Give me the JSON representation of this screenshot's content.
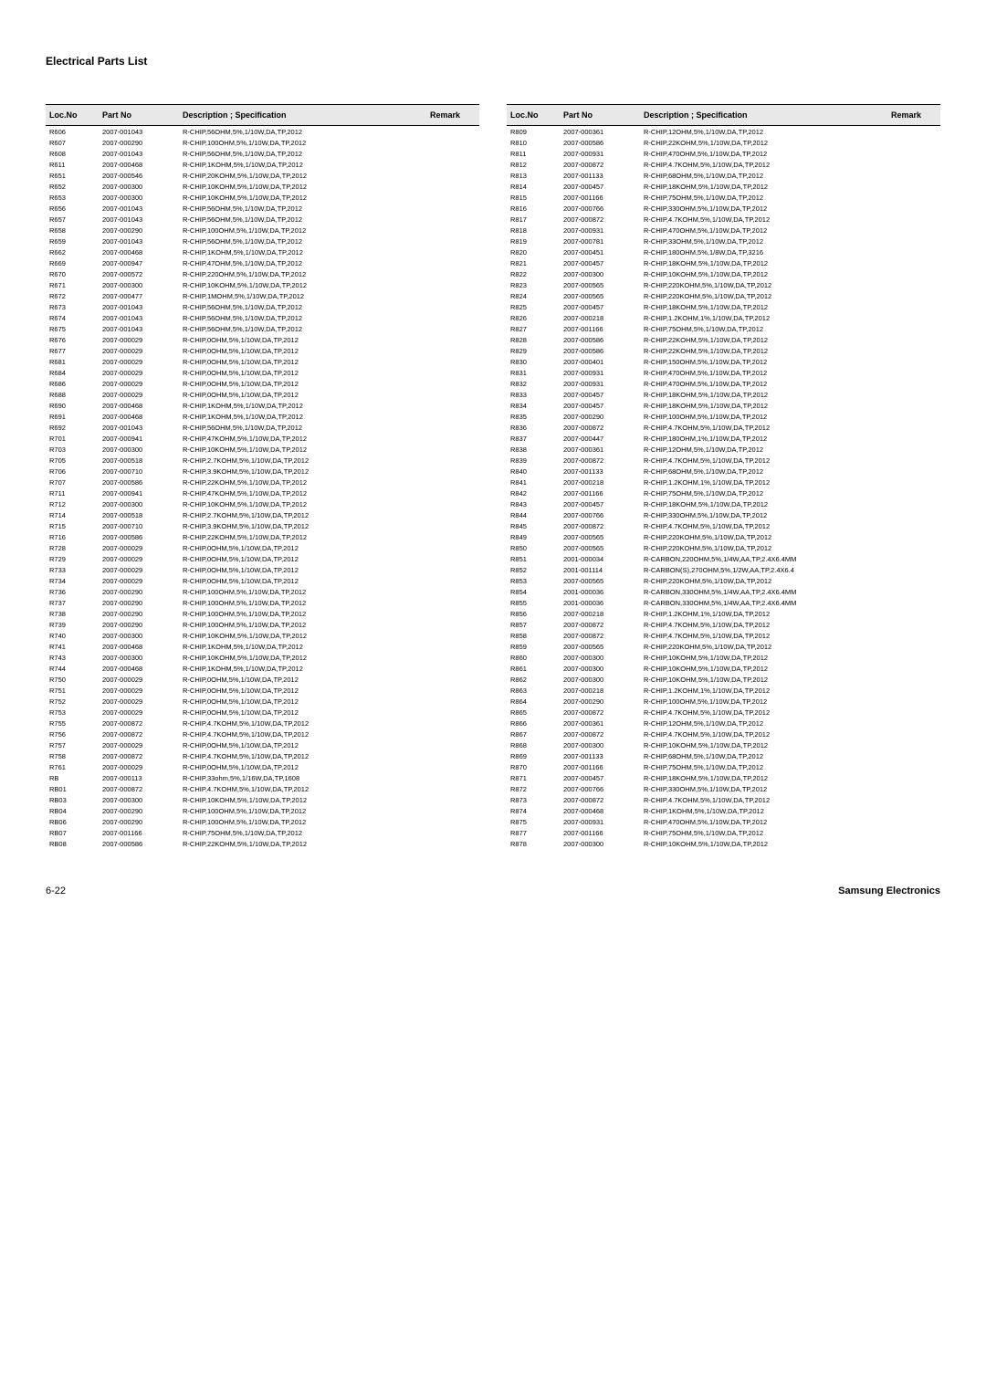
{
  "section_title": "Electrical Parts List",
  "headers": {
    "loc": "Loc.No",
    "part": "Part No",
    "desc": "Description ; Specification",
    "remark": "Remark"
  },
  "footer": {
    "page": "6-22",
    "company": "Samsung Electronics"
  },
  "left_rows": [
    {
      "loc": "R606",
      "part": "2007-001043",
      "desc": "R-CHIP,56OHM,5%,1/10W,DA,TP,2012"
    },
    {
      "loc": "R607",
      "part": "2007-000290",
      "desc": "R-CHIP,100OHM,5%,1/10W,DA,TP,2012"
    },
    {
      "loc": "R608",
      "part": "2007-001043",
      "desc": "R-CHIP,56OHM,5%,1/10W,DA,TP,2012"
    },
    {
      "loc": "R611",
      "part": "2007-000468",
      "desc": "R-CHIP,1KOHM,5%,1/10W,DA,TP,2012"
    },
    {
      "loc": "R651",
      "part": "2007-000546",
      "desc": "R-CHIP,20KOHM,5%,1/10W,DA,TP,2012"
    },
    {
      "loc": "R652",
      "part": "2007-000300",
      "desc": "R-CHIP,10KOHM,5%,1/10W,DA,TP,2012"
    },
    {
      "loc": "R653",
      "part": "2007-000300",
      "desc": "R-CHIP,10KOHM,5%,1/10W,DA,TP,2012"
    },
    {
      "loc": "R656",
      "part": "2007-001043",
      "desc": "R-CHIP,56OHM,5%,1/10W,DA,TP,2012"
    },
    {
      "loc": "R657",
      "part": "2007-001043",
      "desc": "R-CHIP,56OHM,5%,1/10W,DA,TP,2012"
    },
    {
      "loc": "R658",
      "part": "2007-000290",
      "desc": "R-CHIP,100OHM,5%,1/10W,DA,TP,2012"
    },
    {
      "loc": "R659",
      "part": "2007-001043",
      "desc": "R-CHIP,56OHM,5%,1/10W,DA,TP,2012"
    },
    {
      "loc": "R662",
      "part": "2007-000468",
      "desc": "R-CHIP,1KOHM,5%,1/10W,DA,TP,2012"
    },
    {
      "loc": "R669",
      "part": "2007-000947",
      "desc": "R-CHIP,47OHM,5%,1/10W,DA,TP,2012"
    },
    {
      "loc": "R670",
      "part": "2007-000572",
      "desc": "R-CHIP,220OHM,5%,1/10W,DA,TP,2012"
    },
    {
      "loc": "R671",
      "part": "2007-000300",
      "desc": "R-CHIP,10KOHM,5%,1/10W,DA,TP,2012"
    },
    {
      "loc": "R672",
      "part": "2007-000477",
      "desc": "R-CHIP,1MOHM,5%,1/10W,DA,TP,2012"
    },
    {
      "loc": "R673",
      "part": "2007-001043",
      "desc": "R-CHIP,56OHM,5%,1/10W,DA,TP,2012"
    },
    {
      "loc": "R674",
      "part": "2007-001043",
      "desc": "R-CHIP,56OHM,5%,1/10W,DA,TP,2012"
    },
    {
      "loc": "R675",
      "part": "2007-001043",
      "desc": "R-CHIP,56OHM,5%,1/10W,DA,TP,2012"
    },
    {
      "loc": "R676",
      "part": "2007-000029",
      "desc": "R-CHIP,0OHM,5%,1/10W,DA,TP,2012"
    },
    {
      "loc": "R677",
      "part": "2007-000029",
      "desc": "R-CHIP,0OHM,5%,1/10W,DA,TP,2012"
    },
    {
      "loc": "R681",
      "part": "2007-000029",
      "desc": "R-CHIP,0OHM,5%,1/10W,DA,TP,2012"
    },
    {
      "loc": "R684",
      "part": "2007-000029",
      "desc": "R-CHIP,0OHM,5%,1/10W,DA,TP,2012"
    },
    {
      "loc": "R686",
      "part": "2007-000029",
      "desc": "R-CHIP,0OHM,5%,1/10W,DA,TP,2012"
    },
    {
      "loc": "R688",
      "part": "2007-000029",
      "desc": "R-CHIP,0OHM,5%,1/10W,DA,TP,2012"
    },
    {
      "loc": "R690",
      "part": "2007-000468",
      "desc": "R-CHIP,1KOHM,5%,1/10W,DA,TP,2012"
    },
    {
      "loc": "R691",
      "part": "2007-000468",
      "desc": "R-CHIP,1KOHM,5%,1/10W,DA,TP,2012"
    },
    {
      "loc": "R692",
      "part": "2007-001043",
      "desc": "R-CHIP,56OHM,5%,1/10W,DA,TP,2012"
    },
    {
      "loc": "R701",
      "part": "2007-000941",
      "desc": "R-CHIP,47KOHM,5%,1/10W,DA,TP,2012"
    },
    {
      "loc": "R703",
      "part": "2007-000300",
      "desc": "R-CHIP,10KOHM,5%,1/10W,DA,TP,2012"
    },
    {
      "loc": "R705",
      "part": "2007-000518",
      "desc": "R-CHIP,2.7KOHM,5%,1/10W,DA,TP,2012"
    },
    {
      "loc": "R706",
      "part": "2007-000710",
      "desc": "R-CHIP,3.9KOHM,5%,1/10W,DA,TP,2012"
    },
    {
      "loc": "R707",
      "part": "2007-000586",
      "desc": "R-CHIP,22KOHM,5%,1/10W,DA,TP,2012"
    },
    {
      "loc": "R711",
      "part": "2007-000941",
      "desc": "R-CHIP,47KOHM,5%,1/10W,DA,TP,2012"
    },
    {
      "loc": "R712",
      "part": "2007-000300",
      "desc": "R-CHIP,10KOHM,5%,1/10W,DA,TP,2012"
    },
    {
      "loc": "R714",
      "part": "2007-000518",
      "desc": "R-CHIP,2.7KOHM,5%,1/10W,DA,TP,2012"
    },
    {
      "loc": "R715",
      "part": "2007-000710",
      "desc": "R-CHIP,3.9KOHM,5%,1/10W,DA,TP,2012"
    },
    {
      "loc": "R716",
      "part": "2007-000586",
      "desc": "R-CHIP,22KOHM,5%,1/10W,DA,TP,2012"
    },
    {
      "loc": "R728",
      "part": "2007-000029",
      "desc": "R-CHIP,0OHM,5%,1/10W,DA,TP,2012"
    },
    {
      "loc": "R729",
      "part": "2007-000029",
      "desc": "R-CHIP,0OHM,5%,1/10W,DA,TP,2012"
    },
    {
      "loc": "R733",
      "part": "2007-000029",
      "desc": "R-CHIP,0OHM,5%,1/10W,DA,TP,2012"
    },
    {
      "loc": "R734",
      "part": "2007-000029",
      "desc": "R-CHIP,0OHM,5%,1/10W,DA,TP,2012"
    },
    {
      "loc": "R736",
      "part": "2007-000290",
      "desc": "R-CHIP,100OHM,5%,1/10W,DA,TP,2012"
    },
    {
      "loc": "R737",
      "part": "2007-000290",
      "desc": "R-CHIP,100OHM,5%,1/10W,DA,TP,2012"
    },
    {
      "loc": "R738",
      "part": "2007-000290",
      "desc": "R-CHIP,100OHM,5%,1/10W,DA,TP,2012"
    },
    {
      "loc": "R739",
      "part": "2007-000290",
      "desc": "R-CHIP,100OHM,5%,1/10W,DA,TP,2012"
    },
    {
      "loc": "R740",
      "part": "2007-000300",
      "desc": "R-CHIP,10KOHM,5%,1/10W,DA,TP,2012"
    },
    {
      "loc": "R741",
      "part": "2007-000468",
      "desc": "R-CHIP,1KOHM,5%,1/10W,DA,TP,2012"
    },
    {
      "loc": "R743",
      "part": "2007-000300",
      "desc": "R-CHIP,10KOHM,5%,1/10W,DA,TP,2012"
    },
    {
      "loc": "R744",
      "part": "2007-000468",
      "desc": "R-CHIP,1KOHM,5%,1/10W,DA,TP,2012"
    },
    {
      "loc": "R750",
      "part": "2007-000029",
      "desc": "R-CHIP,0OHM,5%,1/10W,DA,TP,2012"
    },
    {
      "loc": "R751",
      "part": "2007-000029",
      "desc": "R-CHIP,0OHM,5%,1/10W,DA,TP,2012"
    },
    {
      "loc": "R752",
      "part": "2007-000029",
      "desc": "R-CHIP,0OHM,5%,1/10W,DA,TP,2012"
    },
    {
      "loc": "R753",
      "part": "2007-000029",
      "desc": "R-CHIP,0OHM,5%,1/10W,DA,TP,2012"
    },
    {
      "loc": "R755",
      "part": "2007-000872",
      "desc": "R-CHIP,4.7KOHM,5%,1/10W,DA,TP,2012"
    },
    {
      "loc": "R756",
      "part": "2007-000872",
      "desc": "R-CHIP,4.7KOHM,5%,1/10W,DA,TP,2012"
    },
    {
      "loc": "R757",
      "part": "2007-000029",
      "desc": "R-CHIP,0OHM,5%,1/10W,DA,TP,2012"
    },
    {
      "loc": "R758",
      "part": "2007-000872",
      "desc": "R-CHIP,4.7KOHM,5%,1/10W,DA,TP,2012"
    },
    {
      "loc": "R761",
      "part": "2007-000029",
      "desc": "R-CHIP,0OHM,5%,1/10W,DA,TP,2012"
    },
    {
      "loc": "RB",
      "part": "2007-000113",
      "desc": "R-CHIP,33ohm,5%,1/16W,DA,TP,1608"
    },
    {
      "loc": "RB01",
      "part": "2007-000872",
      "desc": "R-CHIP,4.7KOHM,5%,1/10W,DA,TP,2012"
    },
    {
      "loc": "RB03",
      "part": "2007-000300",
      "desc": "R-CHIP,10KOHM,5%,1/10W,DA,TP,2012"
    },
    {
      "loc": "RB04",
      "part": "2007-000290",
      "desc": "R-CHIP,100OHM,5%,1/10W,DA,TP,2012"
    },
    {
      "loc": "RB06",
      "part": "2007-000290",
      "desc": "R-CHIP,100OHM,5%,1/10W,DA,TP,2012"
    },
    {
      "loc": "RB07",
      "part": "2007-001166",
      "desc": "R-CHIP,75OHM,5%,1/10W,DA,TP,2012"
    },
    {
      "loc": "RB08",
      "part": "2007-000586",
      "desc": "R-CHIP,22KOHM,5%,1/10W,DA,TP,2012"
    }
  ],
  "right_rows": [
    {
      "loc": "R809",
      "part": "2007-000361",
      "desc": "R-CHIP,12OHM,5%,1/10W,DA,TP,2012"
    },
    {
      "loc": "R810",
      "part": "2007-000586",
      "desc": "R-CHIP,22KOHM,5%,1/10W,DA,TP,2012"
    },
    {
      "loc": "R811",
      "part": "2007-000931",
      "desc": "R-CHIP,470OHM,5%,1/10W,DA,TP,2012"
    },
    {
      "loc": "R812",
      "part": "2007-000872",
      "desc": "R-CHIP,4.7KOHM,5%,1/10W,DA,TP,2012"
    },
    {
      "loc": "R813",
      "part": "2007-001133",
      "desc": "R-CHIP,68OHM,5%,1/10W,DA,TP,2012"
    },
    {
      "loc": "R814",
      "part": "2007-000457",
      "desc": "R-CHIP,18KOHM,5%,1/10W,DA,TP,2012"
    },
    {
      "loc": "R815",
      "part": "2007-001166",
      "desc": "R-CHIP,75OHM,5%,1/10W,DA,TP,2012"
    },
    {
      "loc": "R816",
      "part": "2007-000766",
      "desc": "R-CHIP,330OHM,5%,1/10W,DA,TP,2012"
    },
    {
      "loc": "R817",
      "part": "2007-000872",
      "desc": "R-CHIP,4.7KOHM,5%,1/10W,DA,TP,2012"
    },
    {
      "loc": "R818",
      "part": "2007-000931",
      "desc": "R-CHIP,470OHM,5%,1/10W,DA,TP,2012"
    },
    {
      "loc": "R819",
      "part": "2007-000781",
      "desc": "R-CHIP,33OHM,5%,1/10W,DA,TP,2012"
    },
    {
      "loc": "R820",
      "part": "2007-000451",
      "desc": "R-CHIP,180OHM,5%,1/8W,DA,TP,3216"
    },
    {
      "loc": "R821",
      "part": "2007-000457",
      "desc": "R-CHIP,18KOHM,5%,1/10W,DA,TP,2012"
    },
    {
      "loc": "R822",
      "part": "2007-000300",
      "desc": "R-CHIP,10KOHM,5%,1/10W,DA,TP,2012"
    },
    {
      "loc": "R823",
      "part": "2007-000565",
      "desc": "R-CHIP,220KOHM,5%,1/10W,DA,TP,2012"
    },
    {
      "loc": "R824",
      "part": "2007-000565",
      "desc": "R-CHIP,220KOHM,5%,1/10W,DA,TP,2012"
    },
    {
      "loc": "R825",
      "part": "2007-000457",
      "desc": "R-CHIP,18KOHM,5%,1/10W,DA,TP,2012"
    },
    {
      "loc": "R826",
      "part": "2007-000218",
      "desc": "R-CHIP,1.2KOHM,1%,1/10W,DA,TP,2012"
    },
    {
      "loc": "R827",
      "part": "2007-001166",
      "desc": "R-CHIP,75OHM,5%,1/10W,DA,TP,2012"
    },
    {
      "loc": "R828",
      "part": "2007-000586",
      "desc": "R-CHIP,22KOHM,5%,1/10W,DA,TP,2012"
    },
    {
      "loc": "R829",
      "part": "2007-000586",
      "desc": "R-CHIP,22KOHM,5%,1/10W,DA,TP,2012"
    },
    {
      "loc": "R830",
      "part": "2007-000401",
      "desc": "R-CHIP,150OHM,5%,1/10W,DA,TP,2012"
    },
    {
      "loc": "R831",
      "part": "2007-000931",
      "desc": "R-CHIP,470OHM,5%,1/10W,DA,TP,2012"
    },
    {
      "loc": "R832",
      "part": "2007-000931",
      "desc": "R-CHIP,470OHM,5%,1/10W,DA,TP,2012"
    },
    {
      "loc": "R833",
      "part": "2007-000457",
      "desc": "R-CHIP,18KOHM,5%,1/10W,DA,TP,2012"
    },
    {
      "loc": "R834",
      "part": "2007-000457",
      "desc": "R-CHIP,18KOHM,5%,1/10W,DA,TP,2012"
    },
    {
      "loc": "R835",
      "part": "2007-000290",
      "desc": "R-CHIP,100OHM,5%,1/10W,DA,TP,2012"
    },
    {
      "loc": "R836",
      "part": "2007-000872",
      "desc": "R-CHIP,4.7KOHM,5%,1/10W,DA,TP,2012"
    },
    {
      "loc": "R837",
      "part": "2007-000447",
      "desc": "R-CHIP,180OHM,1%,1/10W,DA,TP,2012"
    },
    {
      "loc": "R838",
      "part": "2007-000361",
      "desc": "R-CHIP,12OHM,5%,1/10W,DA,TP,2012"
    },
    {
      "loc": "R839",
      "part": "2007-000872",
      "desc": "R-CHIP,4.7KOHM,5%,1/10W,DA,TP,2012"
    },
    {
      "loc": "R840",
      "part": "2007-001133",
      "desc": "R-CHIP,68OHM,5%,1/10W,DA,TP,2012"
    },
    {
      "loc": "R841",
      "part": "2007-000218",
      "desc": "R-CHIP,1.2KOHM,1%,1/10W,DA,TP,2012"
    },
    {
      "loc": "R842",
      "part": "2007-001166",
      "desc": "R-CHIP,75OHM,5%,1/10W,DA,TP,2012"
    },
    {
      "loc": "R843",
      "part": "2007-000457",
      "desc": "R-CHIP,18KOHM,5%,1/10W,DA,TP,2012"
    },
    {
      "loc": "R844",
      "part": "2007-000766",
      "desc": "R-CHIP,330OHM,5%,1/10W,DA,TP,2012"
    },
    {
      "loc": "R845",
      "part": "2007-000872",
      "desc": "R-CHIP,4.7KOHM,5%,1/10W,DA,TP,2012"
    },
    {
      "loc": "R849",
      "part": "2007-000565",
      "desc": "R-CHIP,220KOHM,5%,1/10W,DA,TP,2012"
    },
    {
      "loc": "R850",
      "part": "2007-000565",
      "desc": "R-CHIP,220KOHM,5%,1/10W,DA,TP,2012"
    },
    {
      "loc": "R851",
      "part": "2001-000034",
      "desc": "R-CARBON,220OHM,5%,1/4W,AA,TP,2.4X6.4MM"
    },
    {
      "loc": "R852",
      "part": "2001-001114",
      "desc": "R-CARBON(S),270OHM,5%,1/2W,AA,TP,2.4X6.4"
    },
    {
      "loc": "R853",
      "part": "2007-000565",
      "desc": "R-CHIP,220KOHM,5%,1/10W,DA,TP,2012"
    },
    {
      "loc": "R854",
      "part": "2001-000036",
      "desc": "R-CARBON,330OHM,5%,1/4W,AA,TP,2.4X6.4MM"
    },
    {
      "loc": "R855",
      "part": "2001-000036",
      "desc": "R-CARBON,330OHM,5%,1/4W,AA,TP,2.4X6.4MM"
    },
    {
      "loc": "R856",
      "part": "2007-000218",
      "desc": "R-CHIP,1.2KOHM,1%,1/10W,DA,TP,2012"
    },
    {
      "loc": "R857",
      "part": "2007-000872",
      "desc": "R-CHIP,4.7KOHM,5%,1/10W,DA,TP,2012"
    },
    {
      "loc": "R858",
      "part": "2007-000872",
      "desc": "R-CHIP,4.7KOHM,5%,1/10W,DA,TP,2012"
    },
    {
      "loc": "R859",
      "part": "2007-000565",
      "desc": "R-CHIP,220KOHM,5%,1/10W,DA,TP,2012"
    },
    {
      "loc": "R860",
      "part": "2007-000300",
      "desc": "R-CHIP,10KOHM,5%,1/10W,DA,TP,2012"
    },
    {
      "loc": "R861",
      "part": "2007-000300",
      "desc": "R-CHIP,10KOHM,5%,1/10W,DA,TP,2012"
    },
    {
      "loc": "R862",
      "part": "2007-000300",
      "desc": "R-CHIP,10KOHM,5%,1/10W,DA,TP,2012"
    },
    {
      "loc": "R863",
      "part": "2007-000218",
      "desc": "R-CHIP,1.2KOHM,1%,1/10W,DA,TP,2012"
    },
    {
      "loc": "R864",
      "part": "2007-000290",
      "desc": "R-CHIP,100OHM,5%,1/10W,DA,TP,2012"
    },
    {
      "loc": "R865",
      "part": "2007-000872",
      "desc": "R-CHIP,4.7KOHM,5%,1/10W,DA,TP,2012"
    },
    {
      "loc": "R866",
      "part": "2007-000361",
      "desc": "R-CHIP,12OHM,5%,1/10W,DA,TP,2012"
    },
    {
      "loc": "R867",
      "part": "2007-000872",
      "desc": "R-CHIP,4.7KOHM,5%,1/10W,DA,TP,2012"
    },
    {
      "loc": "R868",
      "part": "2007-000300",
      "desc": "R-CHIP,10KOHM,5%,1/10W,DA,TP,2012"
    },
    {
      "loc": "R869",
      "part": "2007-001133",
      "desc": "R-CHIP,68OHM,5%,1/10W,DA,TP,2012"
    },
    {
      "loc": "R870",
      "part": "2007-001166",
      "desc": "R-CHIP,75OHM,5%,1/10W,DA,TP,2012"
    },
    {
      "loc": "R871",
      "part": "2007-000457",
      "desc": "R-CHIP,18KOHM,5%,1/10W,DA,TP,2012"
    },
    {
      "loc": "R872",
      "part": "2007-000766",
      "desc": "R-CHIP,330OHM,5%,1/10W,DA,TP,2012"
    },
    {
      "loc": "R873",
      "part": "2007-000872",
      "desc": "R-CHIP,4.7KOHM,5%,1/10W,DA,TP,2012"
    },
    {
      "loc": "R874",
      "part": "2007-000468",
      "desc": "R-CHIP,1KOHM,5%,1/10W,DA,TP,2012"
    },
    {
      "loc": "R875",
      "part": "2007-000931",
      "desc": "R-CHIP,470OHM,5%,1/10W,DA,TP,2012"
    },
    {
      "loc": "R877",
      "part": "2007-001166",
      "desc": "R-CHIP,75OHM,5%,1/10W,DA,TP,2012"
    },
    {
      "loc": "R878",
      "part": "2007-000300",
      "desc": "R-CHIP,10KOHM,5%,1/10W,DA,TP,2012"
    }
  ]
}
